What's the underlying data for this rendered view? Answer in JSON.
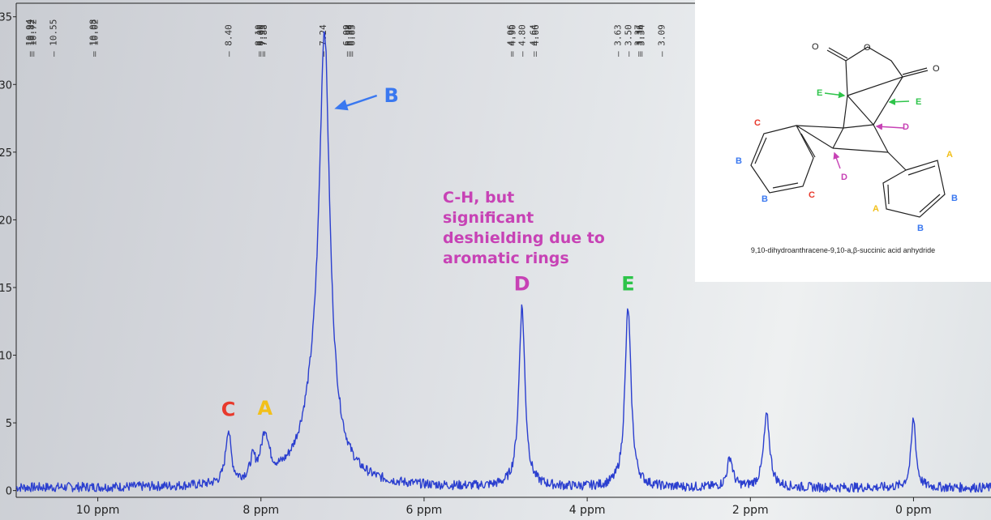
{
  "chart_data": {
    "type": "line",
    "xlabel": "",
    "ylabel": "",
    "x_unit": "ppm",
    "xlim": [
      11.0,
      -0.95
    ],
    "ylim": [
      -0.5,
      36
    ],
    "x_ticks": [
      {
        "value": 10,
        "label": "10 ppm"
      },
      {
        "value": 8,
        "label": "8 ppm"
      },
      {
        "value": 6,
        "label": "6 ppm"
      },
      {
        "value": 4,
        "label": "4 ppm"
      },
      {
        "value": 2,
        "label": "2 ppm"
      },
      {
        "value": 0,
        "label": "0 ppm"
      }
    ],
    "y_ticks": [
      0,
      5,
      10,
      15,
      20,
      25,
      30,
      35
    ],
    "series": [
      {
        "color": "#2b3fcf",
        "baseline": 0.2,
        "peaks": [
          {
            "ppm": 8.4,
            "height": 3.9,
            "width": 0.04
          },
          {
            "ppm": 8.1,
            "height": 1.4,
            "width": 0.04
          },
          {
            "ppm": 7.95,
            "height": 3.3,
            "width": 0.06
          },
          {
            "ppm": 7.3,
            "height": 6.0,
            "width": 0.22
          },
          {
            "ppm": 7.22,
            "height": 28.5,
            "width": 0.075
          },
          {
            "ppm": 4.8,
            "height": 13.3,
            "width": 0.045
          },
          {
            "ppm": 3.5,
            "height": 13.2,
            "width": 0.045
          },
          {
            "ppm": 2.25,
            "height": 2.2,
            "width": 0.04
          },
          {
            "ppm": 1.8,
            "height": 5.3,
            "width": 0.045
          },
          {
            "ppm": 0.0,
            "height": 5.1,
            "width": 0.035
          }
        ]
      }
    ],
    "peak_picks": [
      {
        "group": "10.84",
        "labels": [
          "10.94",
          "10.82",
          "10.72"
        ],
        "x": 10.82
      },
      {
        "group": "10.55",
        "labels": [
          "10.55"
        ],
        "x": 10.55
      },
      {
        "group": "10.02",
        "labels": [
          "10.08",
          "10.02"
        ],
        "x": 10.05
      },
      {
        "group": "8.40",
        "labels": [
          "8.40"
        ],
        "x": 8.4
      },
      {
        "group": "8.0",
        "labels": [
          "8.10",
          "8.00",
          "7.95",
          "7.88"
        ],
        "x": 8.0
      },
      {
        "group": "7.24",
        "labels": [
          "7.24"
        ],
        "x": 7.24
      },
      {
        "group": "6.9",
        "labels": [
          "6.99",
          "6.93",
          "6.89",
          "6.85"
        ],
        "x": 6.92
      },
      {
        "group": "4.86",
        "labels": [
          "4.96",
          "4.90"
        ],
        "x": 4.93
      },
      {
        "group": "4.80",
        "labels": [
          "4.80"
        ],
        "x": 4.8
      },
      {
        "group": "4.64",
        "labels": [
          "4.64",
          "4.66"
        ],
        "x": 4.65
      },
      {
        "group": "3.63",
        "labels": [
          "3.63"
        ],
        "x": 3.63
      },
      {
        "group": "3.50",
        "labels": [
          "3.50"
        ],
        "x": 3.5
      },
      {
        "group": "3.36",
        "labels": [
          "3.37",
          "3.36",
          "3.34"
        ],
        "x": 3.36
      },
      {
        "group": "3.09",
        "labels": [
          "3.09"
        ],
        "x": 3.09
      }
    ],
    "annotations": [
      {
        "text": "C",
        "x": 8.4,
        "y": 5.5,
        "color": "#e8392c"
      },
      {
        "text": "A",
        "x": 7.95,
        "y": 5.6,
        "color": "#f2c01a"
      },
      {
        "text": "B",
        "x": 6.4,
        "y": 28.7,
        "color": "#3a78f0",
        "arrow_to": [
          7.1,
          28.2
        ]
      },
      {
        "text": "D",
        "x": 4.8,
        "y": 14.8,
        "color": "#c742b5"
      },
      {
        "text": "E",
        "x": 3.5,
        "y": 14.8,
        "color": "#2ec44a"
      }
    ]
  },
  "note": {
    "lines": [
      "C-H, but",
      "significant",
      "deshielding due to",
      "aromatic rings"
    ]
  },
  "molecule": {
    "caption": "9,10-dihydroanthracene-9,10-a,β-succinic acid anhydride",
    "atom_labels": [
      "O",
      "O",
      "O"
    ],
    "labels": [
      {
        "text": "E",
        "color": "#2ec44a"
      },
      {
        "text": "E",
        "color": "#2ec44a"
      },
      {
        "text": "D",
        "color": "#c742b5"
      },
      {
        "text": "D",
        "color": "#c742b5"
      },
      {
        "text": "C",
        "color": "#e8392c"
      },
      {
        "text": "C",
        "color": "#e8392c"
      },
      {
        "text": "B",
        "color": "#3a78f0"
      },
      {
        "text": "B",
        "color": "#3a78f0"
      },
      {
        "text": "B",
        "color": "#3a78f0"
      },
      {
        "text": "B",
        "color": "#3a78f0"
      },
      {
        "text": "A",
        "color": "#f2c01a"
      },
      {
        "text": "A",
        "color": "#f2c01a"
      }
    ]
  }
}
